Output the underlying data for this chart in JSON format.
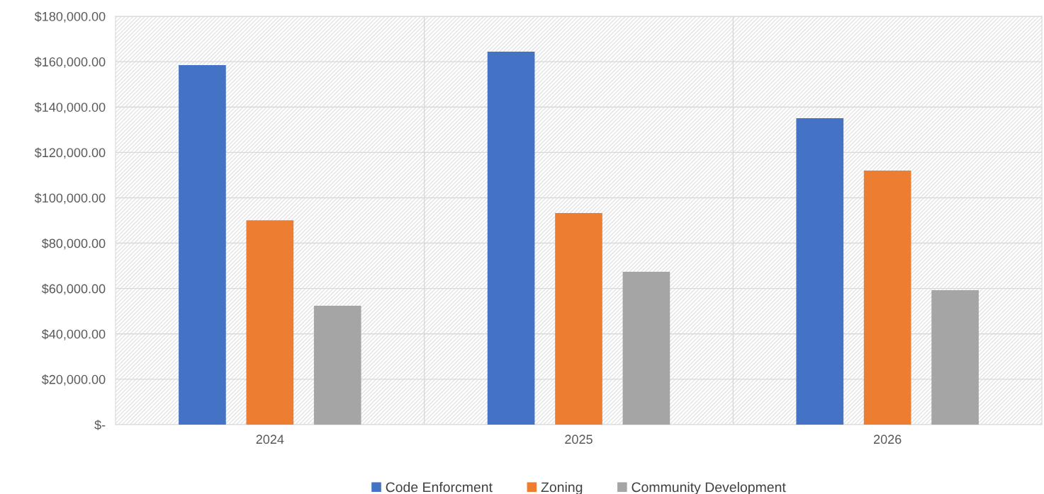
{
  "chart_data": {
    "type": "bar",
    "categories": [
      "2024",
      "2025",
      "2026"
    ],
    "series": [
      {
        "name": "Code Enforcment",
        "color": "#4472c4",
        "values": [
          158500,
          164400,
          135100
        ]
      },
      {
        "name": "Zoning",
        "color": "#ed7d31",
        "values": [
          90100,
          93300,
          112000
        ]
      },
      {
        "name": "Community Development",
        "color": "#a5a5a5",
        "values": [
          52400,
          67400,
          59300
        ]
      }
    ],
    "ylim": [
      0,
      180000
    ],
    "yticks": [
      {
        "value": 0,
        "label": "$-"
      },
      {
        "value": 20000,
        "label": "$20,000.00"
      },
      {
        "value": 40000,
        "label": "$40,000.00"
      },
      {
        "value": 60000,
        "label": "$60,000.00"
      },
      {
        "value": 80000,
        "label": "$80,000.00"
      },
      {
        "value": 100000,
        "label": "$100,000.00"
      },
      {
        "value": 120000,
        "label": "$120,000.00"
      },
      {
        "value": 140000,
        "label": "$140,000.00"
      },
      {
        "value": 160000,
        "label": "$160,000.00"
      },
      {
        "value": 180000,
        "label": "$180,000.00"
      }
    ],
    "grid": true,
    "legend": "bottom"
  }
}
